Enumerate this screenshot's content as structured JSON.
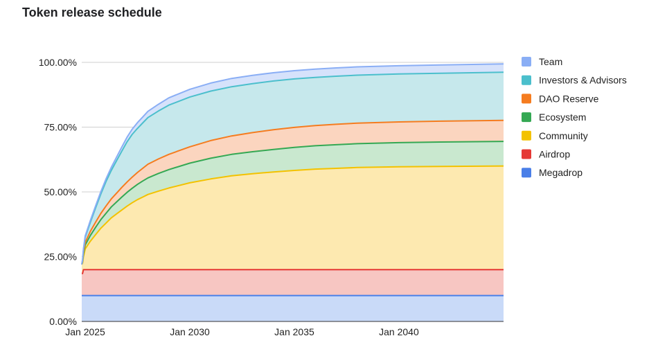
{
  "title": "Token release schedule",
  "chart_data": {
    "type": "area",
    "title": "Token release schedule",
    "stacked": true,
    "xlabel": "",
    "ylabel": "",
    "x_ticks": [
      "Jan 2025",
      "Jan 2030",
      "Jan 2035",
      "Jan 2040"
    ],
    "x_range": [
      "2024-11-01",
      "2045-01-01"
    ],
    "y_ticks": [
      "0.00%",
      "25.00%",
      "50.00%",
      "75.00%",
      "100.00%"
    ],
    "ylim": [
      0,
      100
    ],
    "grid": true,
    "legend_position": "right",
    "dates": [
      "2024-11-01",
      "2024-11-15",
      "2024-12-01",
      "2025-01-01",
      "2025-04-01",
      "2025-07-01",
      "2025-10-01",
      "2026-01-01",
      "2026-04-01",
      "2026-07-01",
      "2026-10-01",
      "2027-01-01",
      "2027-04-01",
      "2027-07-01",
      "2027-10-01",
      "2028-01-01",
      "2028-07-01",
      "2029-01-01",
      "2030-01-01",
      "2031-01-01",
      "2032-01-01",
      "2033-01-01",
      "2034-01-01",
      "2035-01-01",
      "2036-01-01",
      "2037-01-01",
      "2038-01-01",
      "2040-01-01",
      "2042-01-01",
      "2045-01-01"
    ],
    "series": [
      {
        "name": "Megadrop",
        "color": "#4a7fe8",
        "fill": "#c9daf8",
        "values": [
          10,
          10,
          10,
          10,
          10,
          10,
          10,
          10,
          10,
          10,
          10,
          10,
          10,
          10,
          10,
          10,
          10,
          10,
          10,
          10,
          10,
          10,
          10,
          10,
          10,
          10,
          10,
          10,
          10,
          10
        ]
      },
      {
        "name": "Airdrop",
        "color": "#e53935",
        "fill": "#f7c6c2",
        "values": [
          8.5,
          8.5,
          10,
          10,
          10,
          10,
          10,
          10,
          10,
          10,
          10,
          10,
          10,
          10,
          10,
          10,
          10,
          10,
          10,
          10,
          10,
          10,
          10,
          10,
          10,
          10,
          10,
          10,
          10,
          10
        ]
      },
      {
        "name": "Community",
        "color": "#f3c200",
        "fill": "#fde9b0",
        "values": [
          3.5,
          4,
          5,
          8,
          11,
          13.5,
          16,
          18,
          20,
          21.5,
          23,
          24.5,
          25.8,
          27,
          28,
          29,
          30.3,
          31.5,
          33.5,
          35,
          36.2,
          37,
          37.7,
          38.3,
          38.8,
          39.1,
          39.4,
          39.7,
          39.85,
          40
        ]
      },
      {
        "name": "Ecosystem",
        "color": "#34a853",
        "fill": "#c9e8cf",
        "values": [
          0,
          0.5,
          1,
          1.5,
          2.2,
          2.8,
          3.3,
          3.8,
          4.2,
          4.6,
          5,
          5.3,
          5.6,
          5.9,
          6.2,
          6.4,
          6.8,
          7.1,
          7.6,
          8,
          8.3,
          8.5,
          8.7,
          8.9,
          9,
          9.1,
          9.2,
          9.3,
          9.4,
          9.5
        ]
      },
      {
        "name": "DAO Reserve",
        "color": "#f57c1f",
        "fill": "#fbd5bf",
        "values": [
          0,
          0.3,
          0.7,
          1,
          1.6,
          2,
          2.4,
          2.8,
          3.1,
          3.4,
          3.7,
          4,
          4.3,
          4.6,
          4.9,
          5.3,
          5.6,
          5.9,
          6.3,
          6.8,
          7.1,
          7.4,
          7.6,
          7.7,
          7.8,
          7.9,
          7.95,
          8,
          8.05,
          8.1
        ]
      },
      {
        "name": "Investors & Advisors",
        "color": "#4bbfcc",
        "fill": "#c6e8ec",
        "values": [
          0,
          0.4,
          1,
          2,
          3.5,
          5.5,
          7.5,
          9.5,
          11,
          12.5,
          14,
          15.5,
          16.5,
          17,
          17.5,
          18,
          18.5,
          19,
          19.2,
          19.1,
          19,
          18.9,
          18.8,
          18.7,
          18.6,
          18.55,
          18.5,
          18.5,
          18.5,
          18.6
        ]
      },
      {
        "name": "Team",
        "color": "#8aaef5",
        "fill": "#d6e2fb",
        "values": [
          0,
          0.2,
          0.4,
          0.5,
          0.7,
          0.8,
          0.9,
          1,
          1.2,
          1.4,
          1.6,
          1.8,
          2,
          2.2,
          2.3,
          2.4,
          2.6,
          2.8,
          3,
          3.1,
          3.2,
          3.2,
          3.2,
          3.2,
          3.2,
          3.2,
          3.2,
          3.2,
          3.2,
          3.2
        ]
      }
    ],
    "legend": [
      "Team",
      "Investors & Advisors",
      "DAO Reserve",
      "Ecosystem",
      "Community",
      "Airdrop",
      "Megadrop"
    ],
    "legend_colors": [
      "#8aaef5",
      "#4bbfcc",
      "#f57c1f",
      "#34a853",
      "#f3c200",
      "#e53935",
      "#4a7fe8"
    ]
  }
}
